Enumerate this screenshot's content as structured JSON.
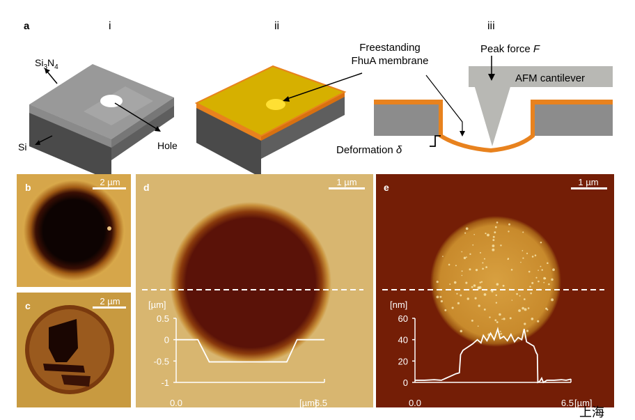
{
  "panel_a": {
    "label": "a",
    "sub_i": "i",
    "sub_ii": "ii",
    "sub_iii": "iii",
    "si3n4_label": "Si3N4",
    "si_label": "Si",
    "hole_label": "Hole",
    "membrane_label_line1": "Freestanding",
    "membrane_label_line2": "FhuA membrane",
    "peak_force_label": "Peak force ",
    "peak_force_symbol": "F",
    "cantilever_label": "AFM cantilever",
    "deformation_label": "Deformation ",
    "deformation_symbol": "δ",
    "colors": {
      "substrate": "#8c8c8c",
      "membrane": "#e8821e",
      "membrane_top": "#d9b400",
      "cantilever": "#b8b8b4"
    }
  },
  "panel_b": {
    "label": "b",
    "scale_bar": "2 µm"
  },
  "panel_c": {
    "label": "c",
    "scale_bar": "2 µm"
  },
  "panel_d": {
    "label": "d",
    "scale_bar": "1 µm",
    "chart_data": {
      "type": "line",
      "ylabel": "[µm]",
      "xlabel": "[µm]",
      "x_ticks": [
        "0.0",
        "6.5"
      ],
      "y_ticks": [
        "0.5",
        "0",
        "-0.5",
        "-1"
      ],
      "xlim": [
        0,
        6.5
      ],
      "ylim": [
        -1,
        0.5
      ],
      "points": [
        [
          0,
          0
        ],
        [
          0.95,
          0
        ],
        [
          1.45,
          -0.52
        ],
        [
          4.85,
          -0.52
        ],
        [
          5.3,
          0
        ],
        [
          6.5,
          0
        ]
      ]
    }
  },
  "panel_e": {
    "label": "e",
    "scale_bar": "1 µm",
    "watermark": "上海",
    "chart_data": {
      "type": "line",
      "ylabel": "[nm]",
      "xlabel": "[µm]",
      "x_ticks": [
        "0.0",
        "6.5"
      ],
      "y_ticks": [
        "60",
        "40",
        "20",
        "0"
      ],
      "xlim": [
        0,
        6.5
      ],
      "ylim": [
        0,
        60
      ],
      "points": [
        [
          0,
          2
        ],
        [
          0.4,
          2
        ],
        [
          0.8,
          2.5
        ],
        [
          1.1,
          2
        ],
        [
          1.3,
          4
        ],
        [
          1.5,
          6
        ],
        [
          1.7,
          8
        ],
        [
          1.85,
          9
        ],
        [
          1.9,
          26
        ],
        [
          2.0,
          30
        ],
        [
          2.2,
          33
        ],
        [
          2.4,
          36
        ],
        [
          2.6,
          40
        ],
        [
          2.75,
          37
        ],
        [
          2.85,
          44
        ],
        [
          3.0,
          39
        ],
        [
          3.15,
          46
        ],
        [
          3.3,
          40
        ],
        [
          3.45,
          50
        ],
        [
          3.55,
          41
        ],
        [
          3.7,
          43
        ],
        [
          3.85,
          39
        ],
        [
          4.0,
          45
        ],
        [
          4.15,
          38
        ],
        [
          4.3,
          42
        ],
        [
          4.45,
          40
        ],
        [
          4.55,
          50
        ],
        [
          4.65,
          38
        ],
        [
          4.8,
          36
        ],
        [
          4.95,
          34
        ],
        [
          5.05,
          28
        ],
        [
          5.1,
          26
        ],
        [
          5.12,
          0
        ],
        [
          5.2,
          1
        ],
        [
          5.28,
          4
        ],
        [
          5.35,
          0
        ],
        [
          5.5,
          2
        ],
        [
          5.8,
          2
        ],
        [
          6.1,
          2.5
        ],
        [
          6.3,
          2
        ],
        [
          6.5,
          3
        ]
      ]
    }
  }
}
